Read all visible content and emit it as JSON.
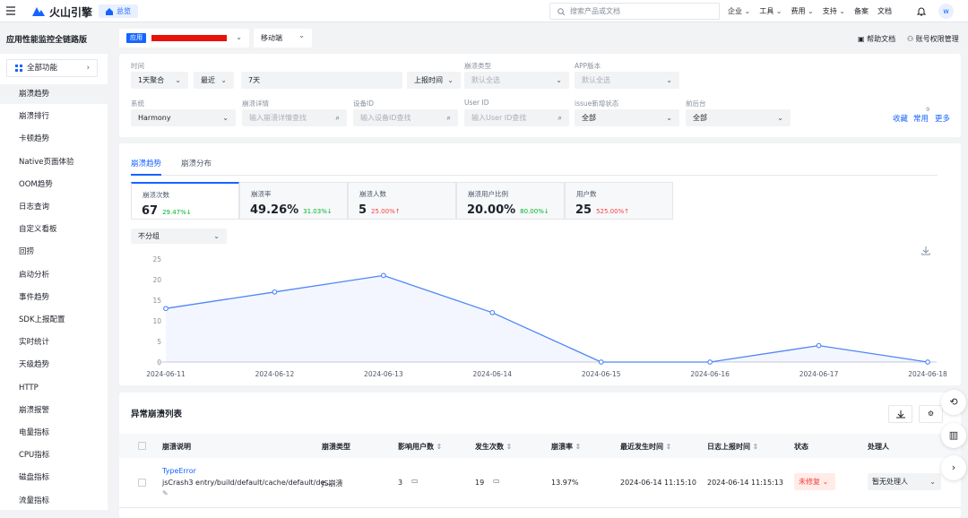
{
  "header": {
    "brand": "火山引擎",
    "home_tab": "总览",
    "search_placeholder": "搜索产品或文档",
    "nav": [
      "企业",
      "工具",
      "费用",
      "支持",
      "备案",
      "文档"
    ],
    "avatar": "w"
  },
  "toolbar": {
    "app_tag": "应用",
    "platform": "移动端",
    "help": "帮助文档",
    "permissions": "账号权限管理"
  },
  "sidebar": {
    "title": "应用性能监控全链路版",
    "all_features": "全部功能",
    "items": [
      "崩溃趋势",
      "崩溃排行",
      "卡顿趋势",
      "Native页面体验",
      "OOM趋势",
      "日志查询",
      "自定义看板",
      "回捞",
      "启动分析",
      "事件趋势",
      "SDK上报配置",
      "实时统计",
      "天级趋势",
      "HTTP",
      "崩溃报警",
      "电量指标",
      "CPU指标",
      "磁盘指标",
      "流量指标"
    ],
    "active": 0
  },
  "filters": {
    "time_label": "时间",
    "aggregation": "1天聚合",
    "recent": "最近",
    "range": "7天",
    "report_time": "上报时间",
    "crash_type_label": "崩溃类型",
    "crash_type": "默认全选",
    "app_version_label": "APP版本",
    "app_version": "默认全选",
    "system_label": "系统",
    "system": "Harmony",
    "detail_label": "崩溃详情",
    "detail_placeholder": "输入崩溃详情查找",
    "device_label": "设备ID",
    "device_placeholder": "输入设备ID查找",
    "user_label": "User ID",
    "user_placeholder": "输入User ID查找",
    "issue_label": "issue新增状态",
    "issue": "全部",
    "foreground_label": "前后台",
    "foreground": "全部",
    "favorite": "收藏",
    "common": "常用",
    "common_badge": "9",
    "more": "更多"
  },
  "tabs": [
    "崩溃趋势",
    "崩溃分布"
  ],
  "metrics": [
    {
      "label": "崩溃次数",
      "value": "67",
      "change": "29.47%↓"
    },
    {
      "label": "崩溃率",
      "value": "49.26%",
      "change": "31.03%↓"
    },
    {
      "label": "崩溃人数",
      "value": "5",
      "change": "25.00%↑"
    },
    {
      "label": "崩溃用户比例",
      "value": "20.00%",
      "change": "80.00%↓"
    },
    {
      "label": "用户数",
      "value": "25",
      "change": "525.00%↑"
    }
  ],
  "group_select": "不分组",
  "chart_data": {
    "type": "line",
    "x": [
      "2024-06-11",
      "2024-06-12",
      "2024-06-13",
      "2024-06-14",
      "2024-06-15",
      "2024-06-16",
      "2024-06-17",
      "2024-06-18"
    ],
    "values": [
      13,
      17,
      21,
      12,
      0,
      0,
      4,
      0
    ],
    "color": "#4e86f5",
    "area": true,
    "ylim": [
      0,
      25
    ],
    "yticks": [
      0,
      5,
      10,
      15,
      20,
      25
    ],
    "grid": false
  },
  "table": {
    "title": "异常崩溃列表",
    "columns": [
      "崩溃说明",
      "崩溃类型",
      "影响用户数",
      "发生次数",
      "崩溃率",
      "最近发生时间",
      "日志上报时间",
      "状态",
      "处理人"
    ],
    "rows": [
      {
        "error": "TypeError",
        "detail": "jsCrash3 entry/build/default/cache/default/de...",
        "type": "JS崩溃",
        "users": "3",
        "count": "19",
        "rate": "13.97%",
        "last_time": "2024-06-14 11:15:10",
        "report_time": "2024-06-14 11:15:13",
        "status": "未修复",
        "handler": "暂无处理人"
      }
    ]
  }
}
